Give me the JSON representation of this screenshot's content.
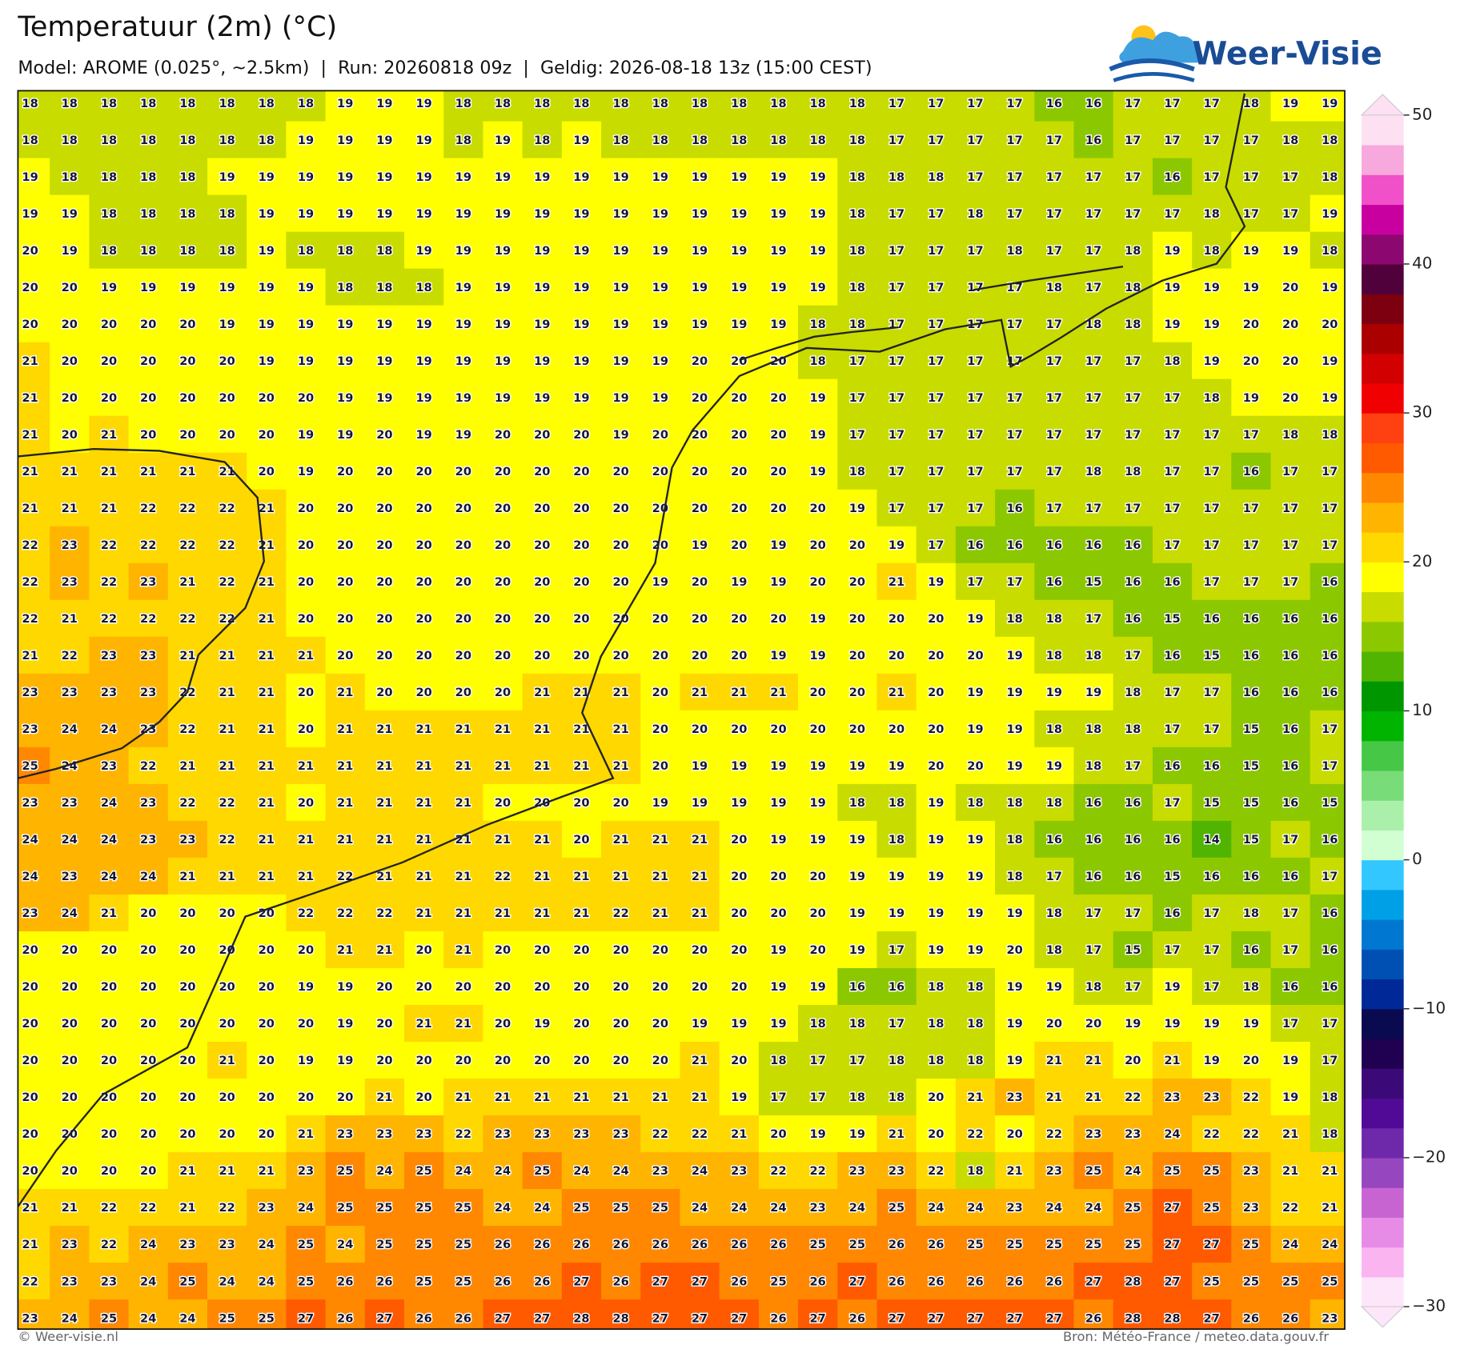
{
  "header": {
    "title": "Temperatuur (2m) (°C)",
    "subtitle": "Model: AROME (0.025°, ~2.5km)  |  Run: 20260818 09z  |  Geldig: 2026-08-18 13z (15:00 CEST)"
  },
  "logo": "Weer-Visie",
  "grid": {
    "rows": [
      [
        18,
        18,
        18,
        18,
        18,
        18,
        18,
        18,
        19,
        19,
        19,
        18,
        18,
        18,
        18,
        18,
        18,
        18,
        18,
        18,
        18,
        18,
        17,
        17,
        17,
        17,
        16,
        16,
        17,
        17,
        17,
        18,
        19,
        19
      ],
      [
        18,
        18,
        18,
        18,
        18,
        18,
        18,
        19,
        19,
        19,
        19,
        18,
        19,
        18,
        19,
        18,
        18,
        18,
        18,
        18,
        18,
        18,
        17,
        17,
        17,
        17,
        17,
        16,
        17,
        17,
        17,
        17,
        18,
        18
      ],
      [
        19,
        18,
        18,
        18,
        18,
        19,
        19,
        19,
        19,
        19,
        19,
        19,
        19,
        19,
        19,
        19,
        19,
        19,
        19,
        19,
        19,
        18,
        18,
        18,
        17,
        17,
        17,
        17,
        17,
        16,
        17,
        17,
        17,
        18
      ],
      [
        19,
        19,
        18,
        18,
        18,
        18,
        19,
        19,
        19,
        19,
        19,
        19,
        19,
        19,
        19,
        19,
        19,
        19,
        19,
        19,
        19,
        18,
        17,
        17,
        18,
        17,
        17,
        17,
        17,
        17,
        18,
        17,
        17,
        19
      ],
      [
        20,
        19,
        18,
        18,
        18,
        18,
        19,
        18,
        18,
        18,
        19,
        19,
        19,
        19,
        19,
        19,
        19,
        19,
        19,
        19,
        19,
        18,
        17,
        17,
        17,
        18,
        17,
        17,
        18,
        19,
        18,
        19,
        19,
        18
      ],
      [
        20,
        20,
        19,
        19,
        19,
        19,
        19,
        19,
        18,
        18,
        18,
        19,
        19,
        19,
        19,
        19,
        19,
        19,
        19,
        19,
        19,
        18,
        17,
        17,
        17,
        17,
        18,
        17,
        18,
        19,
        19,
        19,
        20,
        19
      ],
      [
        20,
        20,
        20,
        20,
        20,
        19,
        19,
        19,
        19,
        19,
        19,
        19,
        19,
        19,
        19,
        19,
        19,
        19,
        19,
        19,
        18,
        18,
        17,
        17,
        17,
        17,
        17,
        18,
        18,
        19,
        19,
        20,
        20,
        20
      ],
      [
        21,
        20,
        20,
        20,
        20,
        20,
        19,
        19,
        19,
        19,
        19,
        19,
        19,
        19,
        19,
        19,
        19,
        20,
        20,
        20,
        18,
        17,
        17,
        17,
        17,
        17,
        17,
        17,
        17,
        18,
        19,
        20,
        20,
        19
      ],
      [
        21,
        20,
        20,
        20,
        20,
        20,
        20,
        20,
        19,
        19,
        19,
        19,
        19,
        19,
        19,
        19,
        19,
        20,
        20,
        20,
        19,
        17,
        17,
        17,
        17,
        17,
        17,
        17,
        17,
        17,
        18,
        19,
        20,
        19
      ],
      [
        21,
        20,
        21,
        20,
        20,
        20,
        20,
        19,
        19,
        20,
        19,
        19,
        20,
        20,
        20,
        19,
        20,
        20,
        20,
        20,
        19,
        17,
        17,
        17,
        17,
        17,
        17,
        17,
        17,
        17,
        17,
        17,
        18,
        18
      ],
      [
        21,
        21,
        21,
        21,
        21,
        21,
        20,
        19,
        20,
        20,
        20,
        20,
        20,
        20,
        20,
        20,
        20,
        20,
        20,
        20,
        19,
        18,
        17,
        17,
        17,
        17,
        17,
        18,
        18,
        17,
        17,
        16,
        17,
        17
      ],
      [
        21,
        21,
        21,
        22,
        22,
        22,
        21,
        20,
        20,
        20,
        20,
        20,
        20,
        20,
        20,
        20,
        20,
        20,
        20,
        20,
        20,
        19,
        17,
        17,
        17,
        16,
        17,
        17,
        17,
        17,
        17,
        17,
        17,
        17
      ],
      [
        22,
        23,
        22,
        22,
        22,
        22,
        21,
        20,
        20,
        20,
        20,
        20,
        20,
        20,
        20,
        20,
        20,
        19,
        20,
        19,
        20,
        20,
        19,
        17,
        16,
        16,
        16,
        16,
        16,
        17,
        17,
        17,
        17,
        17
      ],
      [
        22,
        23,
        22,
        23,
        21,
        22,
        21,
        20,
        20,
        20,
        20,
        20,
        20,
        20,
        20,
        20,
        19,
        20,
        19,
        19,
        20,
        20,
        21,
        19,
        17,
        17,
        16,
        15,
        16,
        16,
        17,
        17,
        17,
        16
      ],
      [
        22,
        21,
        22,
        22,
        22,
        22,
        21,
        20,
        20,
        20,
        20,
        20,
        20,
        20,
        20,
        20,
        20,
        20,
        20,
        20,
        19,
        20,
        20,
        20,
        19,
        18,
        18,
        17,
        16,
        15,
        16,
        16,
        16,
        16
      ],
      [
        21,
        22,
        23,
        23,
        21,
        21,
        21,
        21,
        20,
        20,
        20,
        20,
        20,
        20,
        20,
        20,
        20,
        20,
        20,
        19,
        19,
        20,
        20,
        20,
        20,
        19,
        18,
        18,
        17,
        16,
        15,
        16,
        16,
        16
      ],
      [
        23,
        23,
        23,
        23,
        22,
        21,
        21,
        20,
        21,
        20,
        20,
        20,
        20,
        21,
        21,
        21,
        20,
        21,
        21,
        21,
        20,
        20,
        21,
        20,
        19,
        19,
        19,
        19,
        18,
        17,
        17,
        16,
        16,
        16
      ],
      [
        23,
        24,
        24,
        23,
        22,
        21,
        21,
        20,
        21,
        21,
        21,
        21,
        21,
        21,
        21,
        21,
        20,
        20,
        20,
        20,
        20,
        20,
        20,
        20,
        19,
        19,
        18,
        18,
        18,
        17,
        17,
        15,
        16,
        17
      ],
      [
        25,
        24,
        23,
        22,
        21,
        21,
        21,
        21,
        21,
        21,
        21,
        21,
        21,
        21,
        21,
        21,
        20,
        19,
        19,
        19,
        19,
        19,
        19,
        20,
        20,
        19,
        19,
        18,
        17,
        16,
        16,
        15,
        16,
        17
      ],
      [
        23,
        23,
        24,
        23,
        22,
        22,
        21,
        20,
        21,
        21,
        21,
        21,
        20,
        20,
        20,
        20,
        19,
        19,
        19,
        19,
        19,
        18,
        18,
        19,
        18,
        18,
        18,
        16,
        16,
        17,
        15,
        15,
        16,
        15
      ],
      [
        24,
        24,
        24,
        23,
        23,
        22,
        21,
        21,
        21,
        21,
        21,
        21,
        21,
        21,
        20,
        21,
        21,
        21,
        20,
        19,
        19,
        19,
        18,
        19,
        19,
        18,
        16,
        16,
        16,
        16,
        14,
        15,
        17,
        16
      ],
      [
        24,
        23,
        24,
        24,
        21,
        21,
        21,
        21,
        22,
        21,
        21,
        21,
        22,
        21,
        21,
        21,
        21,
        21,
        20,
        20,
        20,
        19,
        19,
        19,
        19,
        18,
        17,
        16,
        16,
        15,
        16,
        16,
        16,
        17
      ],
      [
        23,
        24,
        21,
        20,
        20,
        20,
        20,
        22,
        22,
        22,
        21,
        21,
        21,
        21,
        21,
        22,
        21,
        21,
        20,
        20,
        20,
        19,
        19,
        19,
        19,
        19,
        18,
        17,
        17,
        16,
        17,
        18,
        17,
        16
      ],
      [
        20,
        20,
        20,
        20,
        20,
        20,
        20,
        20,
        21,
        21,
        20,
        21,
        20,
        20,
        20,
        20,
        20,
        20,
        20,
        19,
        20,
        19,
        17,
        19,
        19,
        20,
        18,
        17,
        15,
        17,
        17,
        16,
        17,
        16
      ],
      [
        20,
        20,
        20,
        20,
        20,
        20,
        20,
        19,
        19,
        20,
        20,
        20,
        20,
        20,
        20,
        20,
        20,
        20,
        20,
        19,
        19,
        16,
        16,
        18,
        18,
        19,
        19,
        18,
        17,
        19,
        17,
        18,
        16,
        16
      ],
      [
        20,
        20,
        20,
        20,
        20,
        20,
        20,
        20,
        19,
        20,
        21,
        21,
        20,
        19,
        20,
        20,
        20,
        19,
        19,
        19,
        18,
        18,
        17,
        18,
        18,
        19,
        20,
        20,
        19,
        19,
        19,
        19,
        17,
        17
      ],
      [
        20,
        20,
        20,
        20,
        20,
        21,
        20,
        19,
        19,
        20,
        20,
        20,
        20,
        20,
        20,
        20,
        20,
        21,
        20,
        18,
        17,
        17,
        18,
        18,
        18,
        19,
        21,
        21,
        20,
        21,
        19,
        20,
        19,
        17
      ],
      [
        20,
        20,
        20,
        20,
        20,
        20,
        20,
        20,
        20,
        21,
        20,
        21,
        21,
        21,
        21,
        21,
        21,
        21,
        19,
        17,
        17,
        18,
        18,
        20,
        21,
        23,
        21,
        21,
        22,
        23,
        23,
        22,
        19,
        18
      ],
      [
        20,
        20,
        20,
        20,
        20,
        20,
        20,
        21,
        23,
        23,
        23,
        22,
        23,
        23,
        23,
        23,
        22,
        22,
        21,
        20,
        19,
        19,
        21,
        20,
        22,
        20,
        22,
        23,
        23,
        24,
        22,
        22,
        21,
        18
      ],
      [
        20,
        20,
        20,
        20,
        21,
        21,
        21,
        23,
        25,
        24,
        25,
        24,
        24,
        25,
        24,
        24,
        23,
        24,
        23,
        22,
        22,
        23,
        23,
        22,
        18,
        21,
        23,
        25,
        24,
        25,
        25,
        23,
        21,
        21
      ],
      [
        21,
        21,
        22,
        22,
        21,
        22,
        23,
        24,
        25,
        25,
        25,
        25,
        24,
        24,
        25,
        25,
        25,
        24,
        24,
        24,
        23,
        24,
        25,
        24,
        24,
        23,
        24,
        24,
        25,
        27,
        25,
        23,
        22,
        21
      ],
      [
        21,
        23,
        22,
        24,
        23,
        23,
        24,
        25,
        24,
        25,
        25,
        25,
        26,
        26,
        26,
        26,
        26,
        26,
        26,
        26,
        25,
        25,
        26,
        26,
        25,
        25,
        25,
        25,
        25,
        27,
        27,
        25,
        24,
        24
      ],
      [
        22,
        23,
        23,
        24,
        25,
        24,
        24,
        25,
        26,
        26,
        25,
        25,
        26,
        26,
        27,
        26,
        27,
        27,
        26,
        25,
        26,
        27,
        26,
        26,
        26,
        26,
        26,
        27,
        28,
        27,
        25,
        25,
        25,
        25
      ],
      [
        23,
        24,
        25,
        24,
        24,
        25,
        25,
        27,
        26,
        27,
        26,
        26,
        27,
        27,
        28,
        28,
        27,
        27,
        27,
        26,
        27,
        26,
        27,
        27,
        27,
        27,
        27,
        26,
        28,
        28,
        27,
        26,
        26,
        23
      ]
    ]
  },
  "colorbar": {
    "range": [
      -30,
      50
    ],
    "ticks": [
      50,
      40,
      30,
      20,
      10,
      0,
      {
        "value": -10,
        "label": "−10"
      },
      {
        "value": -20,
        "label": "−20"
      },
      {
        "value": -30,
        "label": "−30"
      }
    ],
    "colors": [
      "#fde6fa",
      "#fab4f0",
      "#e68ce6",
      "#c864d2",
      "#9646be",
      "#6e28aa",
      "#500a96",
      "#3c0a78",
      "#200050",
      "#0a0a50",
      "#002896",
      "#0050b4",
      "#0078d2",
      "#00a0e6",
      "#32c8ff",
      "#d2ffd2",
      "#aaf0aa",
      "#78dc78",
      "#46c846",
      "#00b400",
      "#009600",
      "#50b400",
      "#8cc800",
      "#c8dc00",
      "#ffff00",
      "#ffd800",
      "#ffb400",
      "#ff8800",
      "#ff5a00",
      "#ff4010",
      "#f00000",
      "#d20000",
      "#aa0000",
      "#7c0010",
      "#50003a",
      "#8c0870",
      "#c800a0",
      "#f050c8",
      "#f7a8dc",
      "#fde0f2"
    ]
  },
  "footer": {
    "left": "© Weer-visie.nl",
    "right": "Bron: Météo-France / meteo.data.gouv.fr"
  }
}
